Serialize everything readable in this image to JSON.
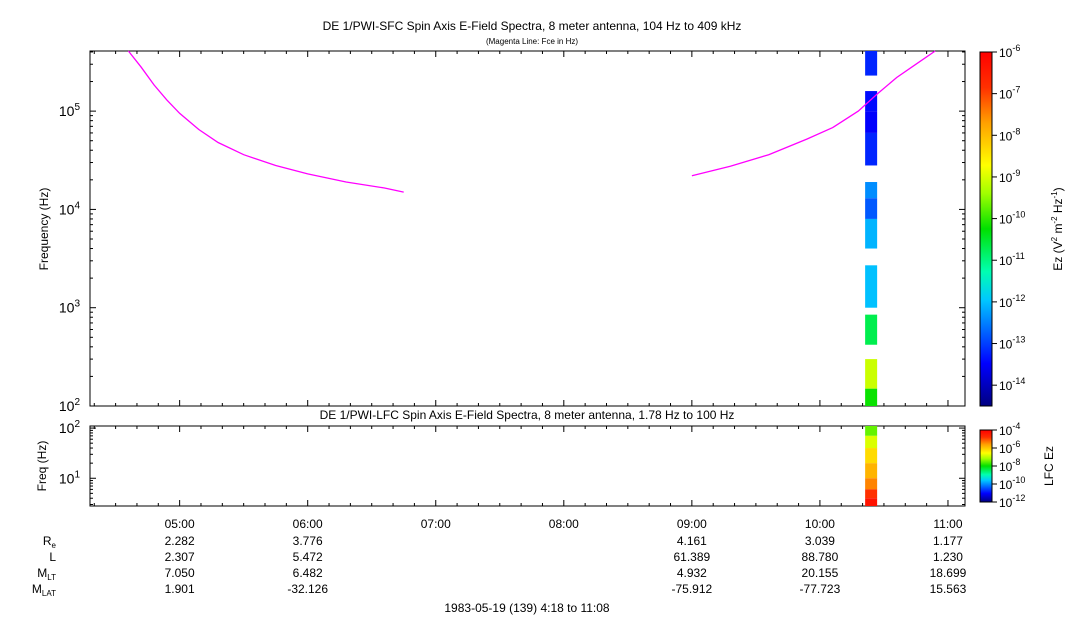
{
  "chart_data": [
    {
      "type": "heatmap",
      "title": "DE 1/PWI-SFC  Spin Axis E-Field Spectra, 8 meter antenna, 104 Hz to 409 kHz",
      "subtitle": "(Magenta Line: Fce in Hz)",
      "ylabel": "Frequency (Hz)",
      "yscale": "log",
      "ylim": [
        100,
        409000
      ],
      "yticks": [
        {
          "base": "10",
          "exp": "2",
          "value": 100
        },
        {
          "base": "10",
          "exp": "3",
          "value": 1000
        },
        {
          "base": "10",
          "exp": "4",
          "value": 10000
        },
        {
          "base": "10",
          "exp": "5",
          "value": 100000
        }
      ],
      "xlim_hours": [
        4.3,
        11.133
      ],
      "fce_line": {
        "color": "#ff00ff",
        "segment1_hours": [
          4.6,
          4.7,
          4.8,
          4.9,
          5.0,
          5.15,
          5.3,
          5.5,
          5.75,
          6.0,
          6.3,
          6.6,
          6.75
        ],
        "segment1_hz": [
          409000,
          280000,
          185000,
          130000,
          95000,
          65000,
          48000,
          36000,
          28000,
          23000,
          19000,
          16500,
          15000
        ],
        "segment2_hours": [
          9.0,
          9.3,
          9.6,
          9.9,
          10.1,
          10.3,
          10.45,
          10.6,
          10.75,
          10.9
        ],
        "segment2_hz": [
          22000,
          27500,
          36000,
          52000,
          68000,
          100000,
          150000,
          220000,
          300000,
          409000
        ]
      },
      "spectra_column": {
        "time_hours": 10.4,
        "blocks": [
          {
            "f_lo": 230000,
            "f_hi": 409000,
            "log_ez": -13.2
          },
          {
            "f_lo": 100000,
            "f_hi": 160000,
            "log_ez": -13.4
          },
          {
            "f_lo": 60000,
            "f_hi": 100000,
            "log_ez": -13.5
          },
          {
            "f_lo": 28000,
            "f_hi": 60000,
            "log_ez": -13.2
          },
          {
            "f_lo": 13000,
            "f_hi": 19000,
            "log_ez": -12.4
          },
          {
            "f_lo": 8000,
            "f_hi": 13000,
            "log_ez": -12.8
          },
          {
            "f_lo": 4000,
            "f_hi": 8000,
            "log_ez": -12.1
          },
          {
            "f_lo": 1000,
            "f_hi": 2700,
            "log_ez": -12.0
          },
          {
            "f_lo": 420,
            "f_hi": 850,
            "log_ez": -10.7
          },
          {
            "f_lo": 150,
            "f_hi": 300,
            "log_ez": -9.1
          },
          {
            "f_lo": 100,
            "f_hi": 150,
            "log_ez": -10.2
          }
        ]
      },
      "colorbar": {
        "label": "Ez (V",
        "label_sup1": "2",
        "label_mid": " m",
        "label_sup2": "-2",
        "label_mid2": " Hz",
        "label_sup3": "-1",
        "label_end": ")",
        "range_log": [
          -14.5,
          -6
        ],
        "ticks": [
          {
            "base": "10",
            "exp": "-6",
            "value": -6
          },
          {
            "base": "10",
            "exp": "-7",
            "value": -7
          },
          {
            "base": "10",
            "exp": "-8",
            "value": -8
          },
          {
            "base": "10",
            "exp": "-9",
            "value": -9
          },
          {
            "base": "10",
            "exp": "-10",
            "value": -10
          },
          {
            "base": "10",
            "exp": "-11",
            "value": -11
          },
          {
            "base": "10",
            "exp": "-12",
            "value": -12
          },
          {
            "base": "10",
            "exp": "-13",
            "value": -13
          },
          {
            "base": "10",
            "exp": "-14",
            "value": -14
          }
        ]
      }
    },
    {
      "type": "heatmap",
      "title": "DE 1/PWI-LFC  Spin Axis E-Field Spectra, 8 meter antenna, 1.78 Hz to 100 Hz",
      "ylabel": "Freq (Hz)",
      "yscale": "log",
      "ylim": [
        2.8,
        110
      ],
      "yticks": [
        {
          "base": "10",
          "exp": "1",
          "value": 10
        },
        {
          "base": "10",
          "exp": "2",
          "value": 100
        }
      ],
      "spectra_column": {
        "time_hours": 10.4,
        "blocks": [
          {
            "f_lo": 70,
            "f_hi": 110,
            "log_ez": -7.5
          },
          {
            "f_lo": 40,
            "f_hi": 70,
            "log_ez": -6.8
          },
          {
            "f_lo": 20,
            "f_hi": 40,
            "log_ez": -6.2
          },
          {
            "f_lo": 10,
            "f_hi": 20,
            "log_ez": -5.8
          },
          {
            "f_lo": 6,
            "f_hi": 10,
            "log_ez": -5.4
          },
          {
            "f_lo": 4,
            "f_hi": 6,
            "log_ez": -4.8
          },
          {
            "f_lo": 2.8,
            "f_hi": 4,
            "log_ez": -4.3
          }
        ]
      },
      "colorbar": {
        "label": "LFC Ez",
        "range_log": [
          -12,
          -4
        ],
        "ticks": [
          {
            "base": "10",
            "exp": "-4",
            "value": -4
          },
          {
            "base": "10",
            "exp": "-6",
            "value": -6
          },
          {
            "base": "10",
            "exp": "-8",
            "value": -8
          },
          {
            "base": "10",
            "exp": "-10",
            "value": -10
          },
          {
            "base": "10",
            "exp": "-12",
            "value": -12
          }
        ]
      }
    }
  ],
  "time_axis": {
    "ticks": [
      {
        "label": "05:00",
        "hours": 5
      },
      {
        "label": "06:00",
        "hours": 6
      },
      {
        "label": "07:00",
        "hours": 7
      },
      {
        "label": "08:00",
        "hours": 8
      },
      {
        "label": "09:00",
        "hours": 9
      },
      {
        "label": "10:00",
        "hours": 10
      },
      {
        "label": "11:00",
        "hours": 11
      }
    ],
    "footer": "1983-05-19 (139) 4:18 to 11:08"
  },
  "ephemeris": {
    "rows": [
      {
        "name": "R",
        "sub": "e",
        "values": [
          "2.282",
          "3.776",
          "",
          "",
          "4.161",
          "3.039",
          "1.177"
        ]
      },
      {
        "name": "L",
        "sub": "",
        "values": [
          "2.307",
          "5.472",
          "",
          "",
          "61.389",
          "88.780",
          "1.230"
        ]
      },
      {
        "name": "M",
        "sub": "LT",
        "values": [
          "7.050",
          "6.482",
          "",
          "",
          "4.932",
          "20.155",
          "18.699"
        ]
      },
      {
        "name": "M",
        "sub": "LAT",
        "values": [
          "1.901",
          "-32.126",
          "",
          "",
          "-75.912",
          "-77.723",
          "15.563"
        ]
      }
    ]
  }
}
